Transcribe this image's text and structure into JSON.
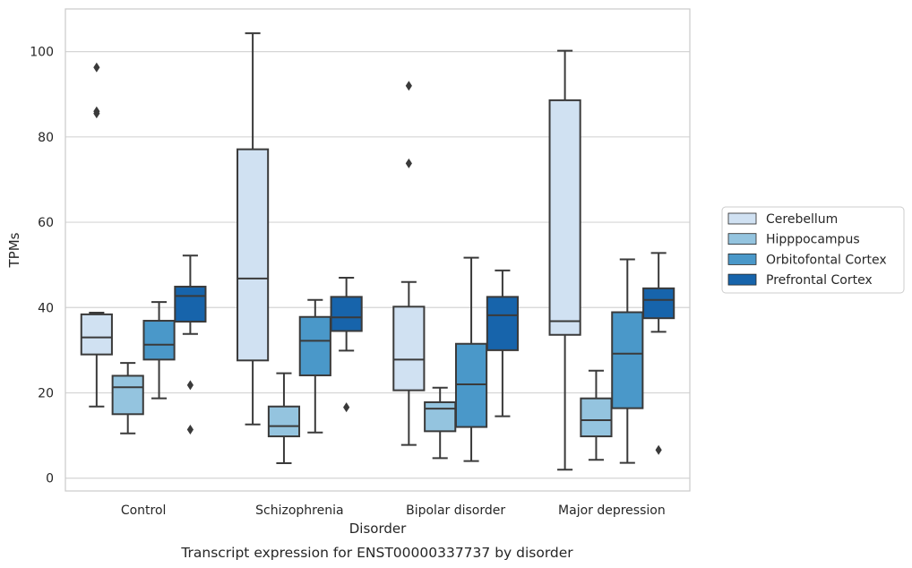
{
  "chart_data": {
    "type": "boxplot",
    "xlabel": "Disorder",
    "ylabel": "TPMs",
    "caption": "Transcript expression for ENST00000337737 by disorder",
    "ylim": [
      -3,
      110
    ],
    "yticks": [
      0,
      20,
      40,
      60,
      80,
      100
    ],
    "grid": true,
    "legend_position": "right",
    "categories": [
      "Control",
      "Schizophrenia",
      "Bipolar disorder",
      "Major depression"
    ],
    "series": [
      {
        "name": "Cerebellum",
        "color": "#d0e1f2",
        "boxes": [
          {
            "whislo": 16.8,
            "q1": 29.0,
            "med": 33.0,
            "q3": 38.4,
            "whishi": 38.8,
            "fliers": [
              96.3,
              86.0,
              85.5
            ]
          },
          {
            "whislo": 12.6,
            "q1": 27.6,
            "med": 46.8,
            "q3": 77.1,
            "whishi": 104.3,
            "fliers": []
          },
          {
            "whislo": 7.8,
            "q1": 20.6,
            "med": 27.8,
            "q3": 40.2,
            "whishi": 46.0,
            "fliers": [
              92.0,
              73.8
            ]
          },
          {
            "whislo": 2.0,
            "q1": 33.6,
            "med": 36.8,
            "q3": 88.6,
            "whishi": 100.2,
            "fliers": []
          }
        ]
      },
      {
        "name": "Hipppocampus",
        "color": "#94c4df",
        "boxes": [
          {
            "whislo": 10.5,
            "q1": 15.0,
            "med": 21.3,
            "q3": 24.0,
            "whishi": 27.0,
            "fliers": []
          },
          {
            "whislo": 3.5,
            "q1": 9.8,
            "med": 12.2,
            "q3": 16.8,
            "whishi": 24.6,
            "fliers": []
          },
          {
            "whislo": 4.7,
            "q1": 11.0,
            "med": 16.3,
            "q3": 17.8,
            "whishi": 21.2,
            "fliers": []
          },
          {
            "whislo": 4.3,
            "q1": 9.8,
            "med": 13.6,
            "q3": 18.7,
            "whishi": 25.2,
            "fliers": []
          }
        ]
      },
      {
        "name": "Orbitofontal Cortex",
        "color": "#4a98c9",
        "boxes": [
          {
            "whislo": 18.7,
            "q1": 27.8,
            "med": 31.3,
            "q3": 36.9,
            "whishi": 41.3,
            "fliers": []
          },
          {
            "whislo": 10.7,
            "q1": 24.1,
            "med": 32.2,
            "q3": 37.8,
            "whishi": 41.8,
            "fliers": []
          },
          {
            "whislo": 4.0,
            "q1": 12.0,
            "med": 22.0,
            "q3": 31.5,
            "whishi": 51.7,
            "fliers": []
          },
          {
            "whislo": 3.6,
            "q1": 16.4,
            "med": 29.2,
            "q3": 38.9,
            "whishi": 51.3,
            "fliers": []
          }
        ]
      },
      {
        "name": "Prefrontal Cortex",
        "color": "#1764ab",
        "boxes": [
          {
            "whislo": 33.8,
            "q1": 36.7,
            "med": 42.7,
            "q3": 44.9,
            "whishi": 52.2,
            "fliers": [
              21.8,
              11.4
            ]
          },
          {
            "whislo": 29.9,
            "q1": 34.5,
            "med": 37.7,
            "q3": 42.5,
            "whishi": 47.0,
            "fliers": [
              16.6
            ]
          },
          {
            "whislo": 14.5,
            "q1": 30.0,
            "med": 38.2,
            "q3": 42.5,
            "whishi": 48.7,
            "fliers": []
          },
          {
            "whislo": 34.3,
            "q1": 37.5,
            "med": 41.8,
            "q3": 44.5,
            "whishi": 52.8,
            "fliers": [
              6.6
            ]
          }
        ]
      }
    ]
  }
}
